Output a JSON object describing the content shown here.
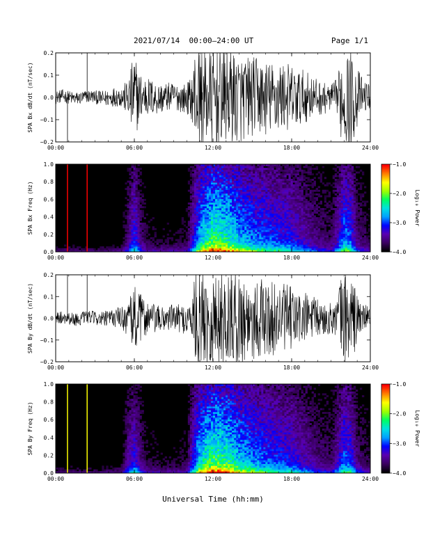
{
  "header": {
    "title": "2021/07/14  00:00–24:00 UT",
    "page": "Page 1/1"
  },
  "chart_data": [
    {
      "type": "line",
      "ylabel": "SPA Bx dB/dt (nT/sec)",
      "xlim": [
        0,
        24
      ],
      "ylim": [
        -0.2,
        0.2
      ],
      "xticks": [
        "00:00",
        "06:00",
        "12:00",
        "18:00",
        "24:00"
      ],
      "yticks": [
        "−0.2",
        "−0.1",
        "0.0",
        "0.1",
        "0.2"
      ],
      "line_color": "#000000",
      "envelope": {
        "x_hours": [
          0,
          1,
          2,
          3,
          4,
          5,
          5.5,
          5.8,
          6,
          6.3,
          7,
          8,
          9,
          10,
          10.4,
          10.6,
          11,
          11.5,
          12,
          12.5,
          13,
          14,
          15,
          16,
          17,
          18,
          19,
          20,
          21,
          21.5,
          21.8,
          22,
          22.5,
          23,
          23.5,
          24
        ],
        "amplitude": [
          0.03,
          0.03,
          0.03,
          0.03,
          0.04,
          0.05,
          0.08,
          0.16,
          0.22,
          0.12,
          0.09,
          0.07,
          0.06,
          0.07,
          0.1,
          0.22,
          0.22,
          0.22,
          0.22,
          0.22,
          0.22,
          0.2,
          0.18,
          0.17,
          0.16,
          0.15,
          0.12,
          0.08,
          0.06,
          0.08,
          0.2,
          0.22,
          0.22,
          0.14,
          0.07,
          0.06
        ]
      },
      "spikes": [
        {
          "x_hour": 0.9,
          "value": -0.2
        },
        {
          "x_hour": 2.4,
          "value": 0.2
        }
      ]
    },
    {
      "type": "heatmap",
      "ylabel": "SPA Bx Freq (Hz)",
      "xlim": [
        0,
        24
      ],
      "ylim": [
        0.0,
        1.0
      ],
      "xticks": [
        "00:00",
        "06:00",
        "12:00",
        "18:00",
        "24:00"
      ],
      "yticks": [
        "0.0",
        "0.2",
        "0.4",
        "0.6",
        "0.8",
        "1.0"
      ],
      "colorbar": {
        "label": "Log₁₀ Power",
        "range": [
          -4.0,
          -1.0
        ],
        "ticks": [
          "−4.0",
          "−3.0",
          "−2.0",
          "−1.0"
        ],
        "colors": [
          "#000000",
          "#3a0060",
          "#5a00b0",
          "#0000ff",
          "#00a0ff",
          "#00e0e0",
          "#00ff60",
          "#a0ff00",
          "#ffff00",
          "#ff8000",
          "#ff0000"
        ]
      },
      "activity_hours": [
        0,
        1,
        2,
        3,
        4,
        5,
        5.5,
        6,
        6.5,
        7,
        8,
        9,
        10,
        10.5,
        11,
        12,
        13,
        14,
        15,
        16,
        17,
        18,
        19,
        20,
        21,
        21.5,
        22,
        22.5,
        23,
        24
      ],
      "activity_level": [
        0.05,
        0.06,
        0.05,
        0.05,
        0.06,
        0.08,
        0.25,
        0.5,
        0.25,
        0.15,
        0.12,
        0.12,
        0.15,
        0.4,
        0.7,
        0.9,
        0.85,
        0.7,
        0.6,
        0.55,
        0.5,
        0.45,
        0.35,
        0.25,
        0.2,
        0.35,
        0.6,
        0.55,
        0.25,
        0.15
      ],
      "line_markers": [
        {
          "x_hour": 0.9,
          "color": "#ff0000"
        },
        {
          "x_hour": 2.4,
          "color": "#ff0000"
        }
      ]
    },
    {
      "type": "line",
      "ylabel": "SPA By dB/dt (nT/sec)",
      "xlim": [
        0,
        24
      ],
      "ylim": [
        -0.2,
        0.2
      ],
      "xticks": [
        "00:00",
        "06:00",
        "12:00",
        "18:00",
        "24:00"
      ],
      "yticks": [
        "−0.2",
        "−0.1",
        "0.0",
        "0.1",
        "0.2"
      ],
      "line_color": "#000000",
      "envelope": {
        "x_hours": [
          0,
          1,
          2,
          3,
          4,
          5,
          5.5,
          5.8,
          6,
          6.3,
          7,
          8,
          9,
          10,
          10.4,
          10.6,
          11,
          11.5,
          12,
          12.5,
          13,
          14,
          15,
          16,
          17,
          18,
          19,
          20,
          21,
          21.5,
          21.8,
          22,
          22.5,
          23,
          23.5,
          24
        ],
        "amplitude": [
          0.03,
          0.03,
          0.03,
          0.03,
          0.04,
          0.05,
          0.08,
          0.12,
          0.2,
          0.12,
          0.08,
          0.06,
          0.06,
          0.07,
          0.1,
          0.22,
          0.22,
          0.22,
          0.22,
          0.22,
          0.22,
          0.21,
          0.2,
          0.18,
          0.16,
          0.15,
          0.12,
          0.09,
          0.07,
          0.1,
          0.22,
          0.22,
          0.22,
          0.12,
          0.06,
          0.05
        ]
      },
      "spikes": [
        {
          "x_hour": 0.9,
          "value": 0.2
        },
        {
          "x_hour": 2.4,
          "value": 0.2
        }
      ]
    },
    {
      "type": "heatmap",
      "ylabel": "SPA By Freq (Hz)",
      "xlim": [
        0,
        24
      ],
      "ylim": [
        0.0,
        1.0
      ],
      "xticks": [
        "00:00",
        "06:00",
        "12:00",
        "18:00",
        "24:00"
      ],
      "yticks": [
        "0.0",
        "0.2",
        "0.4",
        "0.6",
        "0.8",
        "1.0"
      ],
      "colorbar": {
        "label": "Log₁₀ Power",
        "range": [
          -4.0,
          -1.0
        ],
        "ticks": [
          "−4.0",
          "−3.0",
          "−2.0",
          "−1.0"
        ],
        "colors": [
          "#000000",
          "#3a0060",
          "#5a00b0",
          "#0000ff",
          "#00a0ff",
          "#00e0e0",
          "#00ff60",
          "#a0ff00",
          "#ffff00",
          "#ff8000",
          "#ff0000"
        ]
      },
      "activity_hours": [
        0,
        1,
        2,
        3,
        4,
        5,
        5.5,
        6,
        6.5,
        7,
        8,
        9,
        10,
        10.5,
        11,
        12,
        13,
        14,
        15,
        16,
        17,
        18,
        19,
        20,
        21,
        21.5,
        22,
        22.5,
        23,
        24
      ],
      "activity_level": [
        0.05,
        0.06,
        0.05,
        0.05,
        0.06,
        0.08,
        0.3,
        0.45,
        0.25,
        0.15,
        0.12,
        0.12,
        0.15,
        0.45,
        0.75,
        0.92,
        0.88,
        0.72,
        0.62,
        0.55,
        0.5,
        0.45,
        0.35,
        0.25,
        0.2,
        0.35,
        0.55,
        0.5,
        0.25,
        0.15
      ],
      "line_markers": [
        {
          "x_hour": 0.9,
          "color": "#ffff00"
        },
        {
          "x_hour": 2.4,
          "color": "#ffff00"
        }
      ]
    }
  ],
  "xaxis_label": "Universal Time (hh:mm)"
}
